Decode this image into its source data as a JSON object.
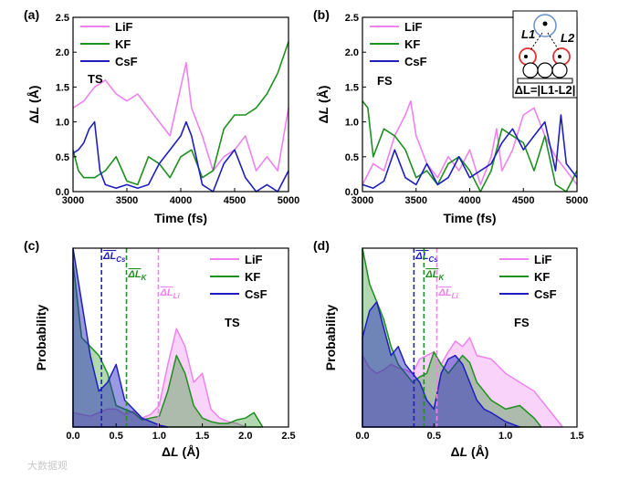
{
  "colors": {
    "LiF": "#ee82ee",
    "KF": "#1f8f1f",
    "CsF": "#1f1fbf"
  },
  "watermark": "大数据观",
  "chart_data": [
    {
      "id": "a",
      "panel_label": "(a)",
      "type": "line",
      "annotation": "TS",
      "xlabel": "Time (fs)",
      "ylabel": "ΔL (Å)",
      "xlim": [
        3000,
        5000
      ],
      "ylim": [
        0,
        2.5
      ],
      "xticks": [
        3000,
        3500,
        4000,
        4500,
        5000
      ],
      "yticks": [
        0.0,
        0.5,
        1.0,
        1.5,
        2.0,
        2.5
      ],
      "series": [
        {
          "name": "LiF",
          "x": [
            3000,
            3100,
            3200,
            3300,
            3400,
            3500,
            3600,
            3700,
            3800,
            3900,
            4000,
            4050,
            4100,
            4200,
            4300,
            4400,
            4500,
            4600,
            4700,
            4800,
            4900,
            5000
          ],
          "y": [
            1.2,
            1.3,
            1.5,
            1.6,
            1.4,
            1.3,
            1.4,
            1.2,
            1.0,
            0.8,
            1.5,
            1.85,
            1.2,
            0.8,
            0.3,
            0.5,
            0.6,
            0.8,
            0.3,
            0.5,
            0.3,
            1.2
          ]
        },
        {
          "name": "KF",
          "x": [
            3000,
            3050,
            3100,
            3200,
            3300,
            3400,
            3500,
            3600,
            3700,
            3800,
            3900,
            4000,
            4100,
            4200,
            4300,
            4400,
            4500,
            4600,
            4700,
            4800,
            4900,
            5000
          ],
          "y": [
            0.6,
            0.3,
            0.2,
            0.2,
            0.3,
            0.5,
            0.15,
            0.1,
            0.5,
            0.4,
            0.2,
            0.5,
            0.6,
            0.2,
            0.3,
            0.9,
            1.1,
            1.1,
            1.2,
            1.4,
            1.7,
            2.15
          ]
        },
        {
          "name": "CsF",
          "x": [
            3000,
            3050,
            3100,
            3150,
            3200,
            3250,
            3300,
            3400,
            3500,
            3600,
            3700,
            3800,
            3900,
            4000,
            4050,
            4100,
            4200,
            4300,
            4400,
            4500,
            4600,
            4700,
            4800,
            4900,
            5000
          ],
          "y": [
            0.55,
            0.6,
            0.7,
            0.9,
            1.0,
            0.3,
            0.1,
            0.05,
            0.1,
            0.05,
            0.1,
            0.4,
            0.6,
            0.8,
            1.0,
            0.8,
            0.1,
            0.0,
            0.4,
            0.6,
            0.2,
            0.0,
            0.1,
            0.0,
            0.3
          ]
        }
      ]
    },
    {
      "id": "b",
      "panel_label": "(b)",
      "type": "line",
      "annotation": "FS",
      "inset_text": "ΔL=|L1-L2|",
      "xlabel": "Time (fs)",
      "ylabel": "ΔL (Å)",
      "xlim": [
        3000,
        5000
      ],
      "ylim": [
        0,
        2.5
      ],
      "xticks": [
        3000,
        3500,
        4000,
        4500,
        5000
      ],
      "yticks": [
        0.0,
        0.5,
        1.0,
        1.5,
        2.0,
        2.5
      ],
      "series": [
        {
          "name": "LiF",
          "x": [
            3000,
            3100,
            3200,
            3300,
            3400,
            3450,
            3500,
            3600,
            3700,
            3800,
            3900,
            4000,
            4100,
            4200,
            4250,
            4300,
            4400,
            4500,
            4600,
            4700,
            4800,
            4900,
            5000
          ],
          "y": [
            0.1,
            0.4,
            0.3,
            0.8,
            1.1,
            1.3,
            0.8,
            0.4,
            0.2,
            0.5,
            0.3,
            0.6,
            0.1,
            0.5,
            0.9,
            0.3,
            0.6,
            1.1,
            1.2,
            0.8,
            0.5,
            0.3,
            0.1
          ]
        },
        {
          "name": "KF",
          "x": [
            3000,
            3050,
            3100,
            3200,
            3300,
            3400,
            3500,
            3600,
            3700,
            3800,
            3900,
            4000,
            4100,
            4200,
            4300,
            4400,
            4500,
            4600,
            4700,
            4800,
            4900,
            5000
          ],
          "y": [
            1.3,
            1.2,
            0.5,
            0.9,
            0.8,
            0.6,
            0.2,
            0.3,
            0.1,
            0.4,
            0.5,
            0.3,
            0.0,
            0.3,
            0.9,
            0.8,
            0.7,
            0.3,
            0.8,
            0.1,
            0.0,
            0.3
          ]
        },
        {
          "name": "CsF",
          "x": [
            3000,
            3100,
            3200,
            3300,
            3400,
            3500,
            3600,
            3700,
            3800,
            3900,
            4000,
            4100,
            4200,
            4300,
            4400,
            4500,
            4600,
            4700,
            4800,
            4850,
            4900,
            5000
          ],
          "y": [
            0.1,
            0.05,
            0.15,
            0.6,
            0.2,
            0.1,
            0.4,
            0.1,
            0.2,
            0.5,
            0.2,
            0.3,
            0.4,
            0.7,
            0.9,
            0.6,
            0.8,
            1.0,
            0.3,
            1.1,
            0.4,
            0.2
          ]
        }
      ]
    },
    {
      "id": "c",
      "panel_label": "(c)",
      "type": "area",
      "annotation": "TS",
      "xlabel": "ΔL (Å)",
      "ylabel": "Probability",
      "xlim": [
        0,
        2.5
      ],
      "ylim": [
        0,
        1
      ],
      "xticks": [
        0.0,
        0.5,
        1.0,
        1.5,
        2.0,
        2.5
      ],
      "mean_lines": [
        {
          "name": "ΔL_Cs",
          "value": 0.33
        },
        {
          "name": "ΔL_K",
          "value": 0.62
        },
        {
          "name": "ΔL_Li",
          "value": 0.99
        }
      ],
      "series": [
        {
          "name": "LiF",
          "x": [
            0,
            0.1,
            0.2,
            0.3,
            0.4,
            0.5,
            0.6,
            0.7,
            0.8,
            0.9,
            1.0,
            1.1,
            1.2,
            1.3,
            1.4,
            1.5,
            1.6,
            1.7,
            1.8,
            1.9,
            2.0
          ],
          "y": [
            0.08,
            0.07,
            0.06,
            0.08,
            0.1,
            0.1,
            0.07,
            0.09,
            0.05,
            0.07,
            0.12,
            0.35,
            0.55,
            0.45,
            0.25,
            0.3,
            0.1,
            0.05,
            0.03,
            0.02,
            0.0
          ]
        },
        {
          "name": "KF",
          "x": [
            0,
            0.1,
            0.2,
            0.3,
            0.4,
            0.5,
            0.6,
            0.7,
            0.8,
            0.9,
            1.0,
            1.1,
            1.2,
            1.3,
            1.4,
            1.5,
            1.6,
            1.7,
            1.8,
            1.9,
            2.0,
            2.1,
            2.2
          ],
          "y": [
            0.92,
            0.5,
            0.45,
            0.4,
            0.3,
            0.12,
            0.1,
            0.08,
            0.04,
            0.05,
            0.06,
            0.2,
            0.4,
            0.3,
            0.12,
            0.05,
            0.03,
            0.02,
            0.02,
            0.04,
            0.05,
            0.08,
            0.0
          ]
        },
        {
          "name": "CsF",
          "x": [
            0,
            0.1,
            0.2,
            0.3,
            0.4,
            0.5,
            0.6,
            0.7,
            0.8,
            0.9,
            1.0,
            1.1
          ],
          "y": [
            1.0,
            0.7,
            0.4,
            0.2,
            0.25,
            0.35,
            0.15,
            0.1,
            0.05,
            0.03,
            0.01,
            0.0
          ]
        }
      ]
    },
    {
      "id": "d",
      "panel_label": "(d)",
      "type": "area",
      "annotation": "FS",
      "xlabel": "ΔL (Å)",
      "ylabel": "Probability",
      "xlim": [
        0,
        1.5
      ],
      "ylim": [
        0,
        1
      ],
      "xticks": [
        0.0,
        0.5,
        1.0,
        1.5
      ],
      "mean_lines": [
        {
          "name": "ΔL_Cs",
          "value": 0.36
        },
        {
          "name": "ΔL_K",
          "value": 0.43
        },
        {
          "name": "ΔL_Li",
          "value": 0.52
        }
      ],
      "series": [
        {
          "name": "LiF",
          "x": [
            0,
            0.05,
            0.1,
            0.15,
            0.2,
            0.25,
            0.3,
            0.35,
            0.4,
            0.45,
            0.5,
            0.55,
            0.6,
            0.65,
            0.7,
            0.75,
            0.8,
            0.9,
            1.0,
            1.1,
            1.2,
            1.3,
            1.4
          ],
          "y": [
            0.4,
            0.33,
            0.3,
            0.32,
            0.35,
            0.33,
            0.32,
            0.3,
            0.38,
            0.4,
            0.42,
            0.35,
            0.42,
            0.48,
            0.45,
            0.5,
            0.4,
            0.38,
            0.3,
            0.25,
            0.2,
            0.1,
            0.0
          ]
        },
        {
          "name": "KF",
          "x": [
            0,
            0.05,
            0.1,
            0.15,
            0.2,
            0.25,
            0.3,
            0.35,
            0.4,
            0.45,
            0.5,
            0.55,
            0.6,
            0.65,
            0.7,
            0.75,
            0.8,
            0.85,
            0.9,
            1.0,
            1.1,
            1.2,
            1.25
          ],
          "y": [
            1.0,
            0.8,
            0.7,
            0.6,
            0.45,
            0.35,
            0.3,
            0.25,
            0.28,
            0.3,
            0.42,
            0.35,
            0.3,
            0.35,
            0.4,
            0.36,
            0.25,
            0.2,
            0.15,
            0.1,
            0.12,
            0.05,
            0.0
          ]
        },
        {
          "name": "CsF",
          "x": [
            0,
            0.05,
            0.1,
            0.15,
            0.2,
            0.25,
            0.3,
            0.35,
            0.4,
            0.45,
            0.5,
            0.55,
            0.6,
            0.65,
            0.7,
            0.75,
            0.8,
            0.85,
            0.9,
            1.0,
            1.1
          ],
          "y": [
            0.5,
            0.65,
            0.7,
            0.55,
            0.4,
            0.45,
            0.35,
            0.3,
            0.25,
            0.15,
            0.1,
            0.3,
            0.38,
            0.4,
            0.35,
            0.25,
            0.15,
            0.1,
            0.08,
            0.03,
            0.0
          ]
        }
      ]
    }
  ]
}
